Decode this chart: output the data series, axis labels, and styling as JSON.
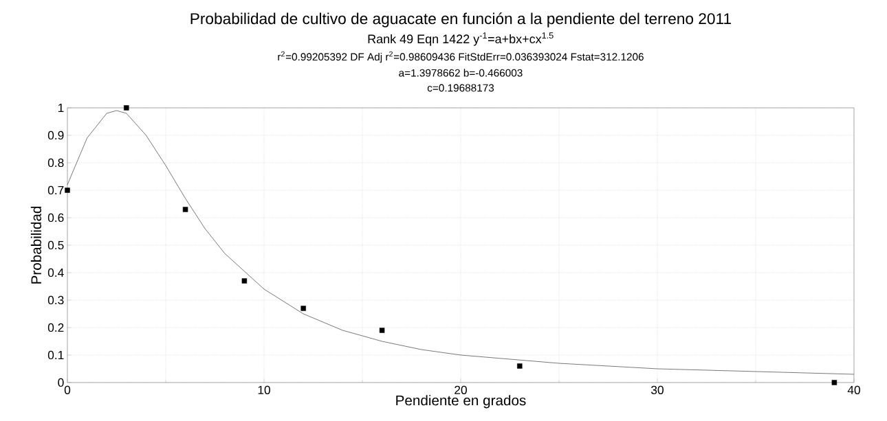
{
  "chart_data": {
    "type": "scatter",
    "title": "Probabilidad de cultivo de aguacate en función a la pendiente del terreno 2011",
    "subtitle": "Rank 49  Eqn 1422  y$^{-1}$=a+bx+cx$^{1.5}$",
    "annotations": [
      "r$^{2}$=0.99205392  DF Adj r$^{2}$=0.98609436  FitStdErr=0.036393024  Fstat=312.1206",
      "a=1.3978662 b=-0.466003",
      "c=0.19688173"
    ],
    "xlabel": "Pendiente en grados",
    "ylabel": "Probabilidad",
    "series": [
      {
        "color": "#000000",
        "marker": "square",
        "x": [
          0,
          3,
          6,
          9,
          12,
          16,
          23,
          39
        ],
        "values": [
          0.7,
          1.0,
          0.63,
          0.37,
          0.27,
          0.19,
          0.06,
          0.0
        ]
      },
      {
        "type": "line",
        "color": "#555555",
        "marker": "none",
        "line_style": "solid",
        "x": [
          0,
          1,
          2,
          2.5,
          3,
          4,
          5,
          6,
          7,
          8,
          10,
          12,
          14,
          16,
          18,
          20,
          25,
          30,
          35,
          40
        ],
        "values": [
          0.72,
          0.89,
          0.98,
          0.99,
          0.98,
          0.9,
          0.79,
          0.67,
          0.56,
          0.47,
          0.34,
          0.25,
          0.19,
          0.15,
          0.12,
          0.1,
          0.07,
          0.05,
          0.04,
          0.03
        ]
      }
    ],
    "xlim": [
      0,
      40
    ],
    "ylim": [
      0,
      1
    ],
    "xticks": [
      0,
      10,
      20,
      30,
      40
    ],
    "yticks": [
      0,
      0.1,
      0.2,
      0.3,
      0.4,
      0.5,
      0.6,
      0.7,
      0.8,
      0.9,
      1
    ],
    "grid": true
  }
}
